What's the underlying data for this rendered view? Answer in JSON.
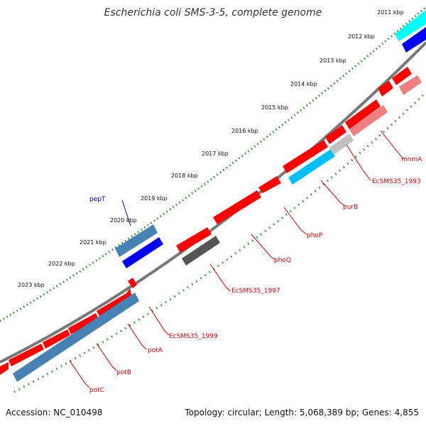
{
  "header": {
    "title": "Escherichia coli SMS-3-5, complete genome"
  },
  "footer": {
    "accession": "Accession: NC_010498",
    "summary": "Topology: circular; Length: 5,068,389 bp; Genes: 4,855"
  },
  "colors": {
    "backbone": "#808080",
    "tick_dots": "#2e8b2e",
    "forward_red": "#ff0000",
    "forward_pink": "#f08080",
    "gene_blue": "#4682b4",
    "gene_darkblue": "#0000ff",
    "gene_cyan": "#00bfff",
    "gene_darkgray": "#555555",
    "gene_lightgray": "#c0c0c0",
    "label_red": "#cc0000",
    "label_blue": "#0000aa"
  },
  "scale": {
    "ticks": [
      "2011 kbp",
      "2012 kbp",
      "2013 kbp",
      "2014 kbp",
      "2015 kbp",
      "2016 kbp",
      "2017 kbp",
      "2018 kbp",
      "2019 kbp",
      "2020 kbp",
      "2021 kbp",
      "2022 kbp",
      "2023 kbp"
    ]
  },
  "gene_labels": [
    {
      "name": "pepT",
      "color": "blue"
    },
    {
      "name": "mnmA",
      "color": "red"
    },
    {
      "name": "EcSMS35_1993",
      "color": "red"
    },
    {
      "name": "purB",
      "color": "red"
    },
    {
      "name": "phoP",
      "color": "red"
    },
    {
      "name": "phoQ",
      "color": "red"
    },
    {
      "name": "EcSMS35_1997",
      "color": "red"
    },
    {
      "name": "EcSMS35_1999",
      "color": "red"
    },
    {
      "name": "potA",
      "color": "red"
    },
    {
      "name": "potB",
      "color": "red"
    },
    {
      "name": "potC",
      "color": "red"
    }
  ]
}
